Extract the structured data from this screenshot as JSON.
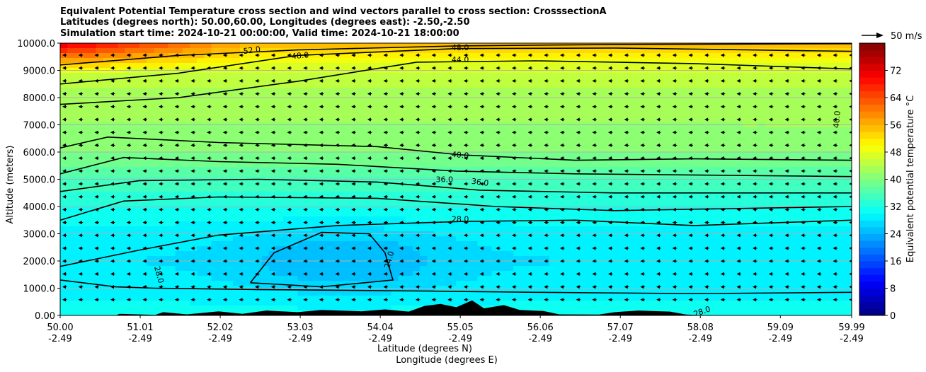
{
  "header": {
    "line1": "Equivalent Potential Temperature cross section and wind vectors parallel to cross section: CrosssectionA",
    "line2": "Latitudes (degrees north): 50.00,60.00, Longitudes (degrees east): -2.50,-2.50",
    "line3": "Simulation start time: 2024-10-21 00:00:00, Valid time: 2024-10-21 18:00:00"
  },
  "colors": {
    "terrain": "#000000",
    "contour": "#000000",
    "grid": "#b0b0b0"
  },
  "chart_data": {
    "type": "heatmap",
    "title": "Equivalent Potential Temperature cross section and wind vectors parallel to cross section: CrosssectionA",
    "ylabel": "Altitude (meters)",
    "xlabel_lat": "Latitude (degrees N)",
    "xlabel_lon": "Longitude (degrees E)",
    "xlim": [
      50.0,
      59.99
    ],
    "ylim": [
      0,
      10000
    ],
    "x_ticks": [
      {
        "lat": "50.00",
        "lon": "-2.49",
        "v": 50.0
      },
      {
        "lat": "51.01",
        "lon": "-2.49",
        "v": 51.01
      },
      {
        "lat": "52.02",
        "lon": "-2.49",
        "v": 52.02
      },
      {
        "lat": "53.03",
        "lon": "-2.49",
        "v": 53.03
      },
      {
        "lat": "54.04",
        "lon": "-2.49",
        "v": 54.04
      },
      {
        "lat": "55.05",
        "lon": "-2.49",
        "v": 55.05
      },
      {
        "lat": "56.06",
        "lon": "-2.49",
        "v": 56.06
      },
      {
        "lat": "57.07",
        "lon": "-2.49",
        "v": 57.07
      },
      {
        "lat": "58.08",
        "lon": "-2.49",
        "v": 58.08
      },
      {
        "lat": "59.09",
        "lon": "-2.49",
        "v": 59.09
      },
      {
        "lat": "59.99",
        "lon": "-2.49",
        "v": 59.99
      }
    ],
    "y_ticks": [
      {
        "label": "0.00",
        "v": 0
      },
      {
        "label": "1000.0",
        "v": 1000
      },
      {
        "label": "2000.0",
        "v": 2000
      },
      {
        "label": "3000.0",
        "v": 3000
      },
      {
        "label": "4000.0",
        "v": 4000
      },
      {
        "label": "5000.0",
        "v": 5000
      },
      {
        "label": "6000.0",
        "v": 6000
      },
      {
        "label": "7000.0",
        "v": 7000
      },
      {
        "label": "8000.0",
        "v": 8000
      },
      {
        "label": "9000.0",
        "v": 9000
      },
      {
        "label": "10000.0",
        "v": 10000
      }
    ],
    "colorbar": {
      "label": "Equivalent potential temperature °C",
      "range": [
        0,
        80
      ],
      "step": 2,
      "ticks": [
        {
          "label": "0",
          "v": 0
        },
        {
          "label": "8",
          "v": 8
        },
        {
          "label": "16",
          "v": 16
        },
        {
          "label": "24",
          "v": 24
        },
        {
          "label": "32",
          "v": 32
        },
        {
          "label": "40",
          "v": 40
        },
        {
          "label": "48",
          "v": 48
        },
        {
          "label": "56",
          "v": 56
        },
        {
          "label": "64",
          "v": 64
        },
        {
          "label": "72",
          "v": 72
        }
      ]
    },
    "quiver_key": {
      "label": "50 m/s",
      "speed": 50
    },
    "wind_u_ms": -4,
    "field_profile": [
      {
        "alt": 0,
        "value": 31
      },
      {
        "alt": 1000,
        "value": 29
      },
      {
        "alt": 2000,
        "value": 28
      },
      {
        "alt": 3000,
        "value": 29
      },
      {
        "alt": 4000,
        "value": 32
      },
      {
        "alt": 5000,
        "value": 36
      },
      {
        "alt": 6000,
        "value": 40
      },
      {
        "alt": 7000,
        "value": 42
      },
      {
        "alt": 8000,
        "value": 43
      },
      {
        "alt": 9000,
        "value": 46
      },
      {
        "alt": 10000,
        "value": 55
      }
    ],
    "cold_core": {
      "lat": 53.6,
      "alt": 2000,
      "value": 24
    },
    "contours": [
      {
        "level": "52.0",
        "points": [
          [
            50.0,
            9200
          ],
          [
            51.5,
            9550
          ],
          [
            53.0,
            9750
          ],
          [
            55.0,
            9900
          ],
          [
            57.0,
            9950
          ],
          [
            59.99,
            9980
          ]
        ]
      },
      {
        "level": "48.0",
        "points": [
          [
            50.0,
            8500
          ],
          [
            51.5,
            8900
          ],
          [
            53.0,
            9550
          ],
          [
            55.0,
            9800
          ],
          [
            57.0,
            9820
          ],
          [
            59.99,
            9700
          ]
        ]
      },
      {
        "level": "44.0",
        "points": [
          [
            50.0,
            7750
          ],
          [
            51.5,
            8000
          ],
          [
            53.0,
            8600
          ],
          [
            54.5,
            9300
          ],
          [
            56.0,
            9350
          ],
          [
            58.0,
            9250
          ],
          [
            59.99,
            9050
          ]
        ]
      },
      {
        "level": "40.0",
        "points": [
          [
            50.0,
            6150
          ],
          [
            50.6,
            6550
          ],
          [
            52.0,
            6350
          ],
          [
            54.0,
            6200
          ],
          [
            55.05,
            5900
          ],
          [
            56.5,
            5700
          ],
          [
            58.0,
            5750
          ],
          [
            59.99,
            5700
          ]
        ]
      },
      {
        "level": "36.0",
        "points": [
          [
            50.0,
            5200
          ],
          [
            50.8,
            5800
          ],
          [
            52.0,
            5650
          ],
          [
            53.5,
            5550
          ],
          [
            55.0,
            5300
          ],
          [
            56.5,
            5200
          ],
          [
            59.99,
            5100
          ]
        ]
      },
      {
        "level": "36.0",
        "points": [
          [
            50.0,
            4550
          ],
          [
            51.0,
            4950
          ],
          [
            52.5,
            5000
          ],
          [
            54.0,
            4900
          ],
          [
            55.3,
            4600
          ],
          [
            57.0,
            4500
          ],
          [
            59.99,
            4500
          ]
        ]
      },
      {
        "level": "32.0",
        "points": [
          [
            50.0,
            3500
          ],
          [
            50.8,
            4200
          ],
          [
            52.0,
            4350
          ],
          [
            54.0,
            4300
          ],
          [
            55.5,
            4000
          ],
          [
            57.0,
            3850
          ],
          [
            59.99,
            4000
          ]
        ]
      },
      {
        "level": "28.0",
        "points": [
          [
            50.0,
            1800
          ],
          [
            51.0,
            2400
          ],
          [
            52.0,
            2950
          ],
          [
            53.5,
            3300
          ],
          [
            55.05,
            3450
          ],
          [
            56.5,
            3500
          ],
          [
            58.0,
            3300
          ],
          [
            59.99,
            3500
          ]
        ]
      },
      {
        "level": "24.0",
        "points": [
          [
            52.4,
            1200
          ],
          [
            52.7,
            2300
          ],
          [
            53.3,
            3050
          ],
          [
            53.9,
            3000
          ],
          [
            54.1,
            2300
          ],
          [
            54.2,
            1300
          ],
          [
            53.3,
            1050
          ],
          [
            52.4,
            1200
          ]
        ]
      },
      {
        "level": "28.0",
        "points": [
          [
            50.0,
            1300
          ],
          [
            50.7,
            1050
          ],
          [
            51.2,
            1000
          ],
          [
            52.5,
            950
          ],
          [
            54.5,
            900
          ],
          [
            56.0,
            850
          ],
          [
            58.0,
            800
          ],
          [
            59.99,
            850
          ]
        ]
      }
    ],
    "contour_labels": [
      {
        "text": "52.0",
        "lat": 52.42,
        "alt": 9750,
        "rot": -8
      },
      {
        "text": "48.0",
        "lat": 53.03,
        "alt": 9550,
        "rot": -5
      },
      {
        "text": "48.0",
        "lat": 55.05,
        "alt": 9850,
        "rot": 0
      },
      {
        "text": "44.0",
        "lat": 55.05,
        "alt": 9400,
        "rot": 0
      },
      {
        "text": "40.0",
        "lat": 55.05,
        "alt": 5900,
        "rot": 5
      },
      {
        "text": "36.0",
        "lat": 54.85,
        "alt": 5000,
        "rot": 0
      },
      {
        "text": "36.0",
        "lat": 55.3,
        "alt": 4900,
        "rot": 8
      },
      {
        "text": "28.0",
        "lat": 55.05,
        "alt": 3550,
        "rot": 0
      },
      {
        "text": "24.0",
        "lat": 54.15,
        "alt": 2050,
        "rot": -75
      },
      {
        "text": "28.0",
        "lat": 51.25,
        "alt": 1500,
        "rot": 75
      },
      {
        "text": "28.0",
        "lat": 58.1,
        "alt": 150,
        "rot": -20
      },
      {
        "text": "40.0",
        "lat": 59.8,
        "alt": 7200,
        "rot": -85
      }
    ],
    "terrain": [
      [
        50.0,
        0
      ],
      [
        50.7,
        0
      ],
      [
        50.75,
        60
      ],
      [
        51.2,
        20
      ],
      [
        51.3,
        120
      ],
      [
        51.6,
        40
      ],
      [
        52.0,
        150
      ],
      [
        52.3,
        60
      ],
      [
        52.6,
        180
      ],
      [
        53.0,
        120
      ],
      [
        53.3,
        200
      ],
      [
        53.8,
        150
      ],
      [
        54.1,
        220
      ],
      [
        54.4,
        140
      ],
      [
        54.6,
        350
      ],
      [
        54.8,
        420
      ],
      [
        55.0,
        300
      ],
      [
        55.2,
        550
      ],
      [
        55.35,
        260
      ],
      [
        55.6,
        380
      ],
      [
        55.8,
        200
      ],
      [
        56.1,
        160
      ],
      [
        56.3,
        40
      ],
      [
        56.8,
        30
      ],
      [
        57.0,
        120
      ],
      [
        57.3,
        180
      ],
      [
        57.7,
        140
      ],
      [
        57.9,
        30
      ],
      [
        58.2,
        0
      ],
      [
        59.99,
        0
      ]
    ]
  }
}
